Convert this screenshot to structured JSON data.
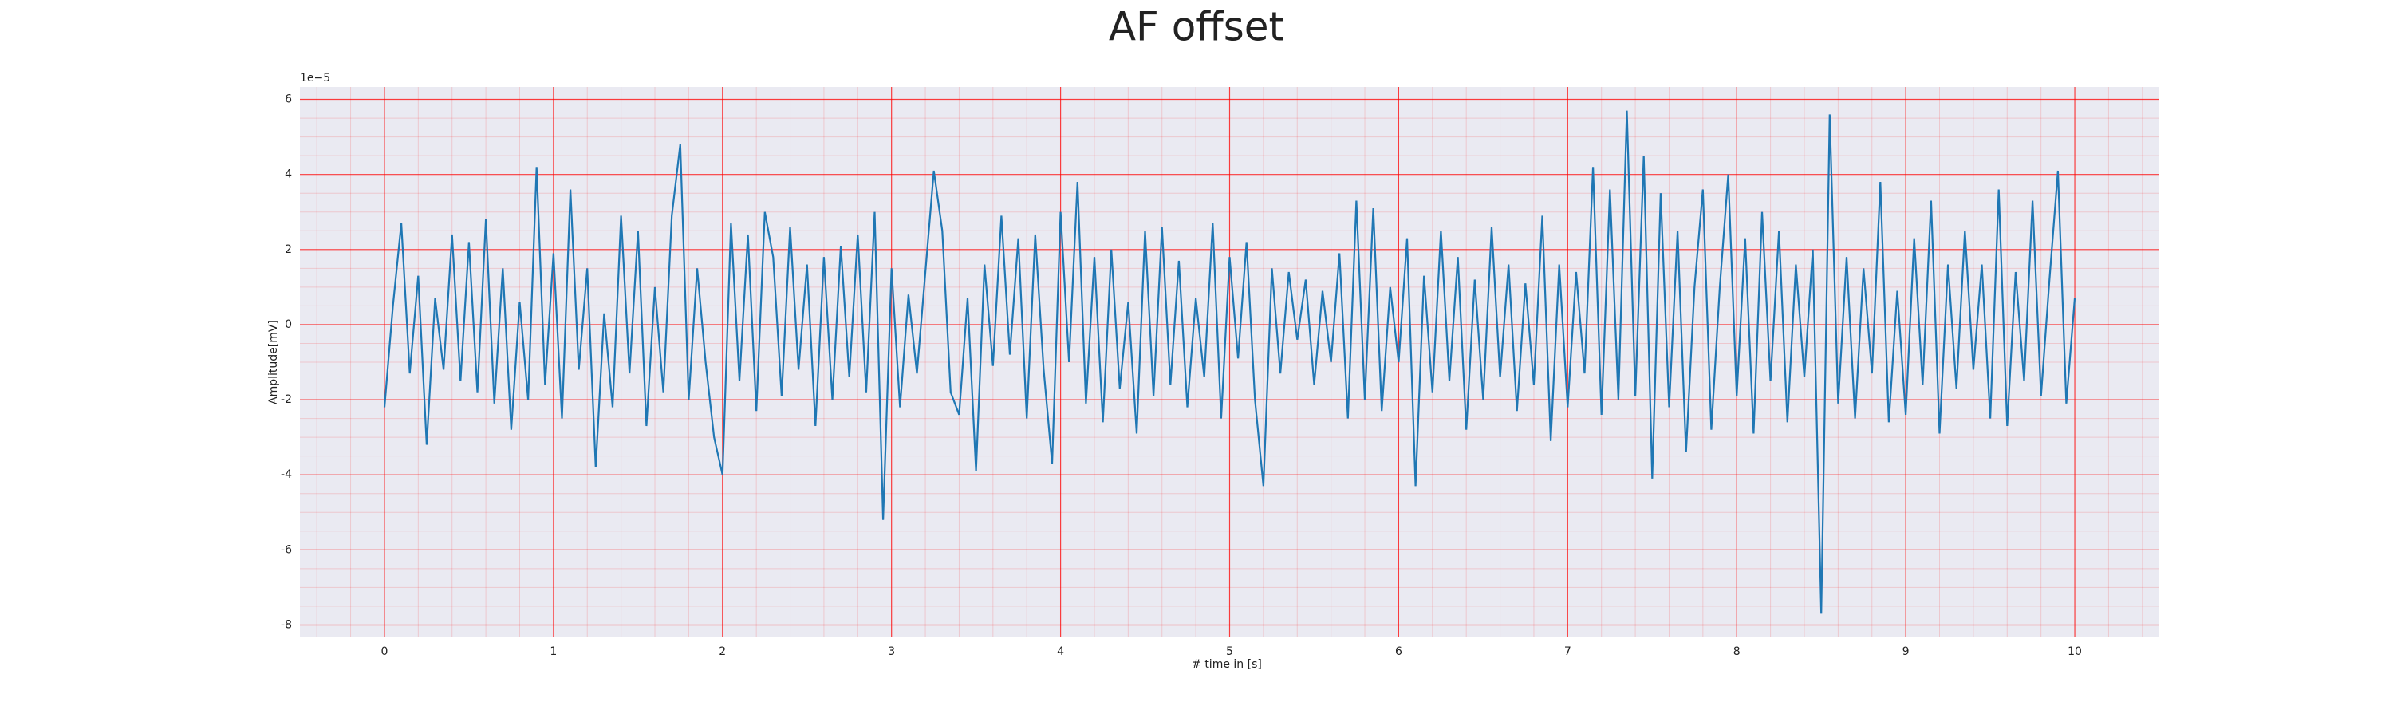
{
  "chart_data": {
    "type": "line",
    "title": "AF offset",
    "xlabel": "# time in [s]",
    "ylabel": "Amplitude[mV]",
    "y_offset_label": "1e−5",
    "x": [
      0,
      0.05,
      0.1,
      0.15,
      0.2,
      0.25,
      0.3,
      0.35,
      0.4,
      0.45,
      0.5,
      0.55,
      0.6,
      0.65,
      0.7,
      0.75,
      0.8,
      0.85,
      0.9,
      0.95,
      1,
      1.05,
      1.1,
      1.15,
      1.2,
      1.25,
      1.3,
      1.35,
      1.4,
      1.45,
      1.5,
      1.55,
      1.6,
      1.65,
      1.7,
      1.75,
      1.8,
      1.85,
      1.9,
      1.95,
      2,
      2.05,
      2.1,
      2.15,
      2.2,
      2.25,
      2.3,
      2.35,
      2.4,
      2.45,
      2.5,
      2.55,
      2.6,
      2.65,
      2.7,
      2.75,
      2.8,
      2.85,
      2.9,
      2.95,
      3,
      3.05,
      3.1,
      3.15,
      3.2,
      3.25,
      3.3,
      3.35,
      3.4,
      3.45,
      3.5,
      3.55,
      3.6,
      3.65,
      3.7,
      3.75,
      3.8,
      3.85,
      3.9,
      3.95,
      4,
      4.05,
      4.1,
      4.15,
      4.2,
      4.25,
      4.3,
      4.35,
      4.4,
      4.45,
      4.5,
      4.55,
      4.6,
      4.65,
      4.7,
      4.75,
      4.8,
      4.85,
      4.9,
      4.95,
      5,
      5.05,
      5.1,
      5.15,
      5.2,
      5.25,
      5.3,
      5.35,
      5.4,
      5.45,
      5.5,
      5.55,
      5.6,
      5.65,
      5.7,
      5.75,
      5.8,
      5.85,
      5.9,
      5.95,
      6,
      6.05,
      6.1,
      6.15,
      6.2,
      6.25,
      6.3,
      6.35,
      6.4,
      6.45,
      6.5,
      6.55,
      6.6,
      6.65,
      6.7,
      6.75,
      6.8,
      6.85,
      6.9,
      6.95,
      7,
      7.05,
      7.1,
      7.15,
      7.2,
      7.25,
      7.3,
      7.35,
      7.4,
      7.45,
      7.5,
      7.55,
      7.6,
      7.65,
      7.7,
      7.75,
      7.8,
      7.85,
      7.9,
      7.95,
      8,
      8.05,
      8.1,
      8.15,
      8.2,
      8.25,
      8.3,
      8.35,
      8.4,
      8.45,
      8.5,
      8.55,
      8.6,
      8.65,
      8.7,
      8.75,
      8.8,
      8.85,
      8.9,
      8.95,
      9,
      9.05,
      9.1,
      9.15,
      9.2,
      9.25,
      9.3,
      9.35,
      9.4,
      9.45,
      9.5,
      9.55,
      9.6,
      9.65,
      9.7,
      9.75,
      9.8,
      9.85,
      9.9,
      9.95,
      10
    ],
    "series": [
      {
        "name": "AF offset",
        "color": "#1f77b4",
        "values": [
          -2.2,
          0.5,
          2.7,
          -1.3,
          1.3,
          -3.2,
          0.7,
          -1.2,
          2.4,
          -1.5,
          2.2,
          -1.8,
          2.8,
          -2.1,
          1.5,
          -2.8,
          0.6,
          -2.0,
          4.2,
          -1.6,
          1.9,
          -2.5,
          3.6,
          -1.2,
          1.5,
          -3.8,
          0.3,
          -2.2,
          2.9,
          -1.3,
          2.5,
          -2.7,
          1.0,
          -1.8,
          2.9,
          4.8,
          -2.0,
          1.5,
          -1.0,
          -3.0,
          -4.0,
          2.7,
          -1.5,
          2.4,
          -2.3,
          3.0,
          1.8,
          -1.9,
          2.6,
          -1.2,
          1.6,
          -2.7,
          1.8,
          -2.0,
          2.1,
          -1.4,
          2.4,
          -1.8,
          3.0,
          -5.2,
          1.5,
          -2.2,
          0.8,
          -1.3,
          1.4,
          4.1,
          2.5,
          -1.8,
          -2.4,
          0.7,
          -3.9,
          1.6,
          -1.1,
          2.9,
          -0.8,
          2.3,
          -2.5,
          2.4,
          -1.2,
          -3.7,
          3.0,
          -1.0,
          3.8,
          -2.1,
          1.8,
          -2.6,
          2.0,
          -1.7,
          0.6,
          -2.9,
          2.5,
          -1.9,
          2.6,
          -1.6,
          1.7,
          -2.2,
          0.7,
          -1.4,
          2.7,
          -2.5,
          1.8,
          -0.9,
          2.2,
          -2.0,
          -4.3,
          1.5,
          -1.3,
          1.4,
          -0.4,
          1.2,
          -1.6,
          0.9,
          -1.0,
          1.9,
          -2.5,
          3.3,
          -2.0,
          3.1,
          -2.3,
          1.0,
          -1.0,
          2.3,
          -4.3,
          1.3,
          -1.8,
          2.5,
          -1.5,
          1.8,
          -2.8,
          1.2,
          -2.0,
          2.6,
          -1.4,
          1.6,
          -2.3,
          1.1,
          -1.6,
          2.9,
          -3.1,
          1.6,
          -2.2,
          1.4,
          -1.3,
          4.2,
          -2.4,
          3.6,
          -2.0,
          5.7,
          -1.9,
          4.5,
          -4.1,
          3.5,
          -2.2,
          2.5,
          -3.4,
          1.0,
          3.6,
          -2.8,
          1.0,
          4.0,
          -1.9,
          2.3,
          -2.9,
          3.0,
          -1.5,
          2.5,
          -2.6,
          1.6,
          -1.4,
          2.0,
          -7.7,
          5.6,
          -2.1,
          1.8,
          -2.5,
          1.5,
          -1.3,
          3.8,
          -2.6,
          0.9,
          -2.4,
          2.3,
          -1.6,
          3.3,
          -2.9,
          1.6,
          -1.7,
          2.5,
          -1.2,
          1.6,
          -2.5,
          3.6,
          -2.7,
          1.4,
          -1.5,
          3.3,
          -1.9,
          1.2,
          4.1,
          -2.1,
          0.7
        ]
      }
    ],
    "xlim": [
      -0.5,
      10.5
    ],
    "xticks": [
      0,
      1,
      2,
      3,
      4,
      5,
      6,
      7,
      8,
      9,
      10
    ],
    "ylim": [
      -8.33,
      6.33
    ],
    "yticks": [
      6,
      4,
      2,
      0,
      -2,
      -4,
      -6,
      -8
    ],
    "grid": true,
    "grid_color": "#ff0000",
    "minor_grid": true,
    "background": "#eaeaf2"
  }
}
